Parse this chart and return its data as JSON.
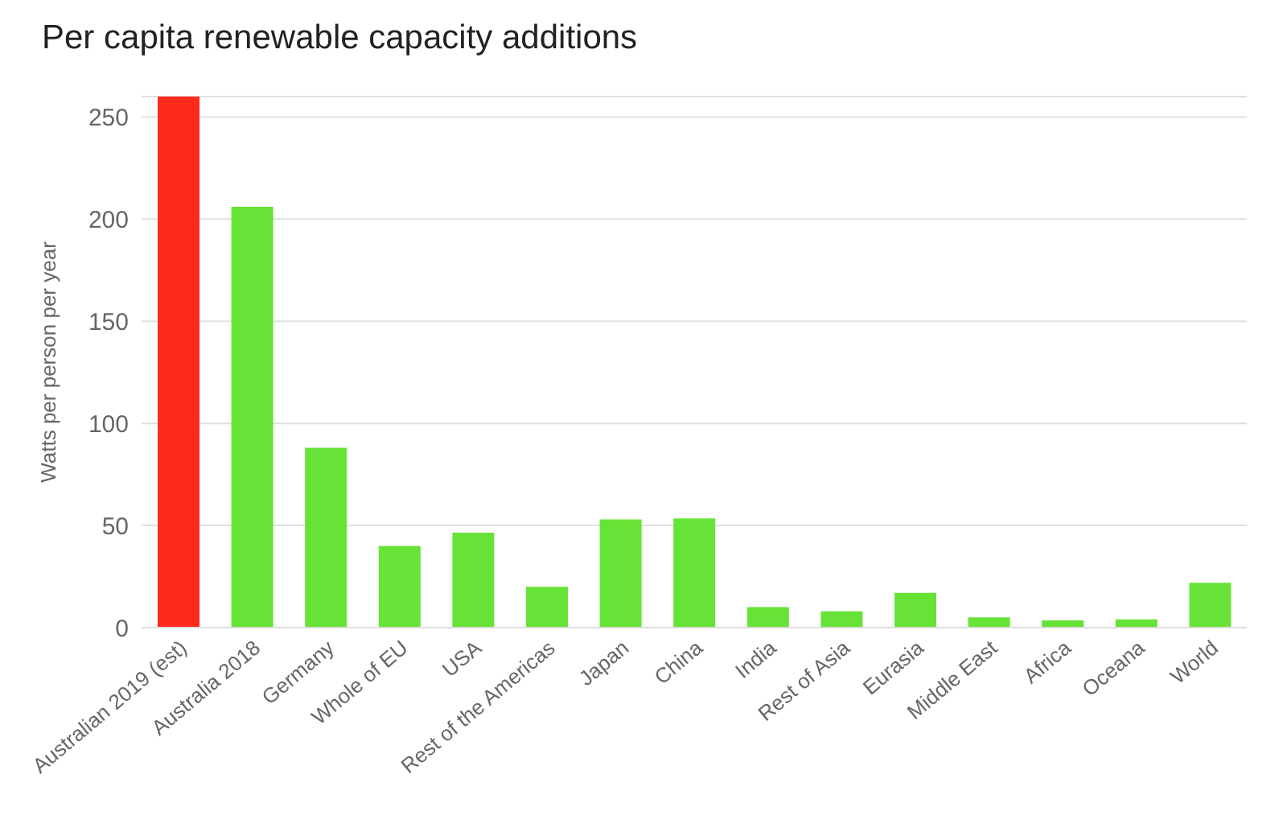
{
  "chart_data": {
    "type": "bar",
    "title": "Per capita renewable capacity additions",
    "ylabel": "Watts per person per year",
    "categories": [
      "Australian 2019 (est)",
      "Australia 2018",
      "Germany",
      "Whole of EU",
      "USA",
      "Rest of the Americas",
      "Japan",
      "China",
      "India",
      "Rest of Asia",
      "Eurasia",
      "Middle East",
      "Africa",
      "Oceana",
      "World"
    ],
    "values": [
      260,
      206,
      88,
      40,
      46.5,
      20,
      53,
      53.5,
      10,
      8,
      17,
      5,
      3.5,
      4,
      22
    ],
    "colors": [
      "#fe2a1c",
      "#66e336",
      "#66e336",
      "#66e336",
      "#66e336",
      "#66e336",
      "#66e336",
      "#66e336",
      "#66e336",
      "#66e336",
      "#66e336",
      "#66e336",
      "#66e336",
      "#66e336",
      "#66e336"
    ],
    "ylim": [
      0,
      260
    ],
    "yticks": [
      0,
      50,
      100,
      150,
      200,
      250
    ],
    "grid": "y"
  }
}
